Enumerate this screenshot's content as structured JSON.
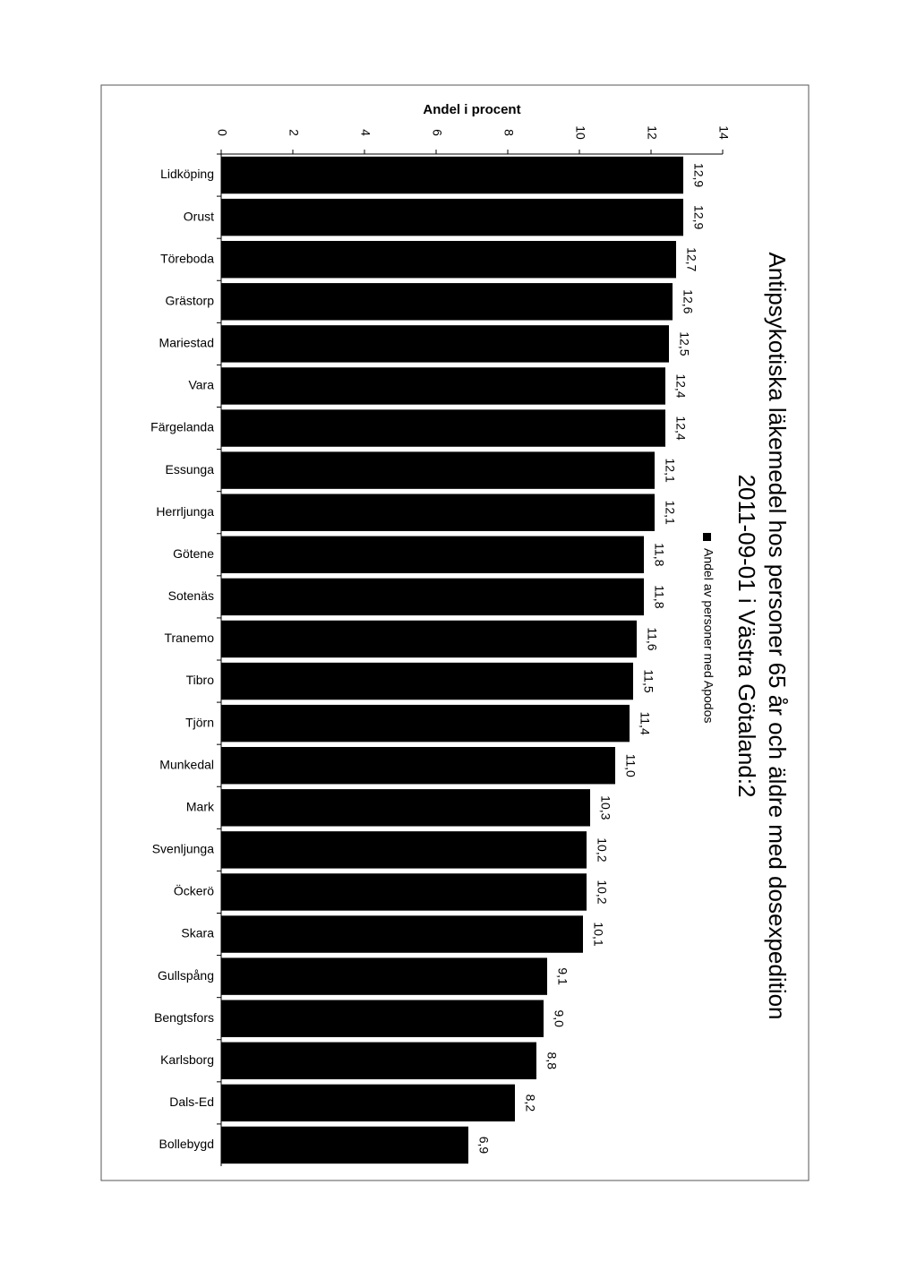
{
  "chart_data": {
    "type": "bar",
    "orientation": "horizontal",
    "title": "Antipsykotiska läkemedel hos personer 65 år och äldre med dosexpedition",
    "subtitle": "2011-09-01 i Västra Götaland:2",
    "x_label": "Andel i procent",
    "categories": [
      "Lidköping",
      "Orust",
      "Töreboda",
      "Grästorp",
      "Mariestad",
      "Vara",
      "Färgelanda",
      "Essunga",
      "Herrljunga",
      "Götene",
      "Sotenäs",
      "Tranemo",
      "Tibro",
      "Tjörn",
      "Munkedal",
      "Mark",
      "Svenljunga",
      "Öckerö",
      "Skara",
      "Gullspång",
      "Bengtsfors",
      "Karlsborg",
      "Dals-Ed",
      "Bollebygd"
    ],
    "series": [
      {
        "name": "Andel av personer med Apodos",
        "color": "#000000",
        "values": [
          12.9,
          12.9,
          12.7,
          12.6,
          12.5,
          12.4,
          12.4,
          12.1,
          12.1,
          11.8,
          11.8,
          11.6,
          11.5,
          11.4,
          11.0,
          10.3,
          10.2,
          10.2,
          10.1,
          9.1,
          9.0,
          8.8,
          8.2,
          6.9
        ],
        "value_labels": [
          "12,9",
          "12,9",
          "12,7",
          "12,6",
          "12,5",
          "12,4",
          "12,4",
          "12,1",
          "12,1",
          "11,8",
          "11,8",
          "11,6",
          "11,5",
          "11,4",
          "11,0",
          "10,3",
          "10,2",
          "10,2",
          "10,1",
          "9,1",
          "9,0",
          "8,8",
          "8,2",
          "6,9"
        ]
      }
    ],
    "xlim": [
      0,
      14
    ],
    "xticks": [
      0,
      2,
      4,
      6,
      8,
      10,
      12,
      14
    ],
    "grid": false
  }
}
